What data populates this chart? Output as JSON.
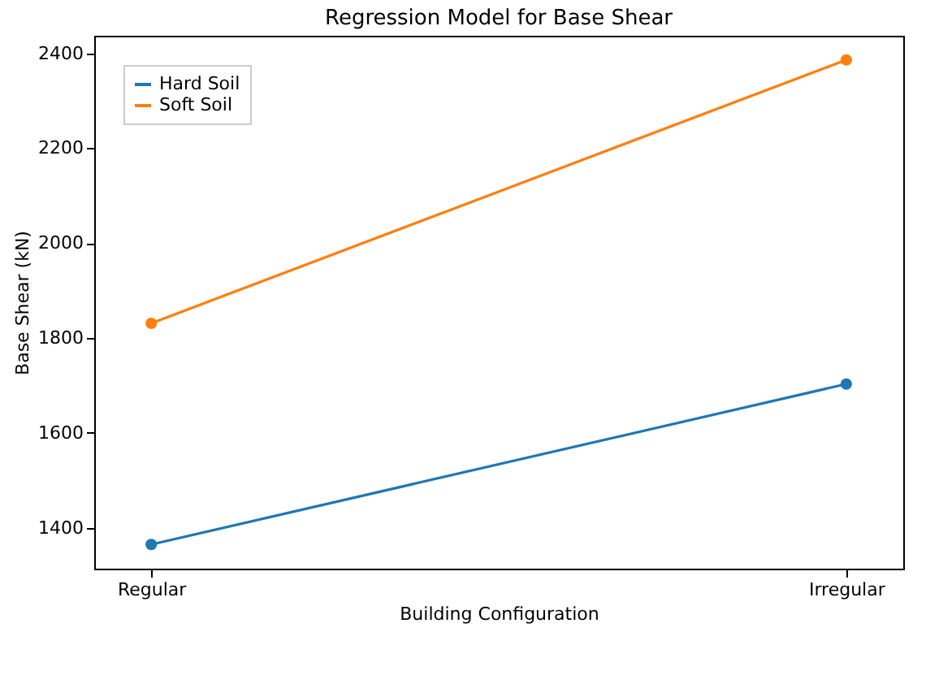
{
  "chart_data": {
    "type": "line",
    "title": "Regression Model for Base Shear",
    "xlabel": "Building Configuration",
    "ylabel": "Base Shear (kN)",
    "categories": [
      "Regular",
      "Irregular"
    ],
    "series": [
      {
        "name": "Hard Soil",
        "color": "#1f77b4",
        "values": [
          1365,
          1703
        ]
      },
      {
        "name": "Soft Soil",
        "color": "#ff7f0e",
        "values": [
          1831,
          2386
        ]
      }
    ],
    "ylim": [
      1314,
      2437
    ],
    "yticks": [
      1400,
      1600,
      1800,
      2000,
      2200,
      2400
    ],
    "grid": false,
    "legend": "top left",
    "marker": "circle"
  }
}
